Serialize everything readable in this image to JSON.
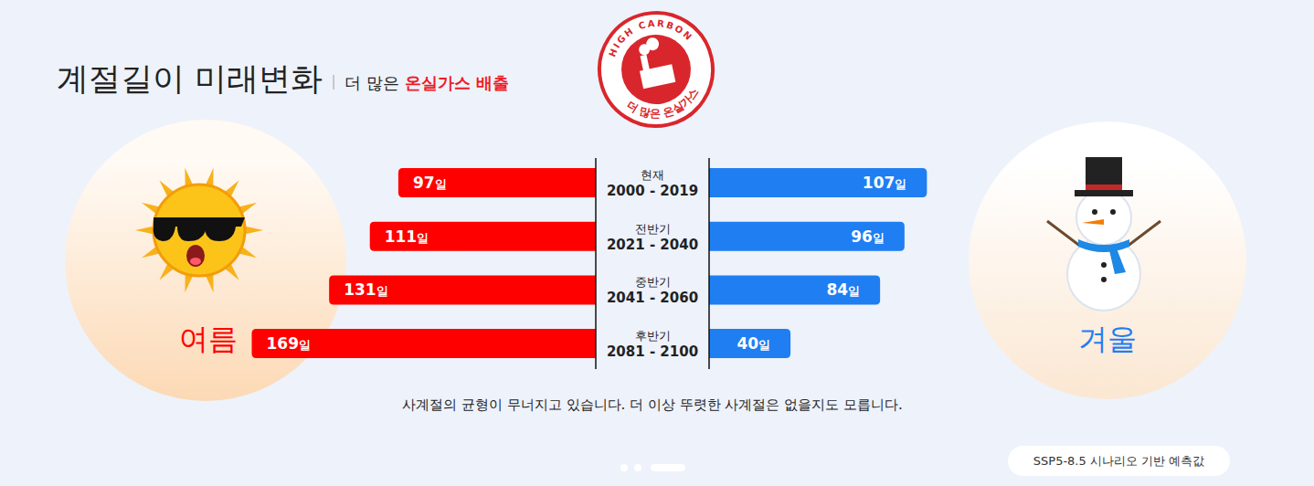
{
  "chart_data": {
    "type": "bar",
    "orientation": "horizontal",
    "title": "계절길이 미래변화",
    "subtitle": [
      "더 많은",
      "온실가스 배출"
    ],
    "categories": [
      "현재\n2000 - 2019",
      "전반기\n2021 - 2040",
      "중반기\n2041 - 2060",
      "후반기\n2081 - 2100"
    ],
    "series": [
      {
        "name": "여름",
        "color": "#ff0000",
        "values": [
          97,
          111,
          131,
          169
        ],
        "value_labels": [
          "97일",
          "111일",
          "131일",
          "169일"
        ]
      },
      {
        "name": "겨울",
        "color": "#1f7ef2",
        "values": [
          107,
          96,
          84,
          40
        ],
        "value_labels": [
          "107일",
          "96일",
          "84일",
          "40일"
        ]
      }
    ],
    "xlim": [
      0,
      180
    ],
    "data_labels": true,
    "tick_labels": false,
    "grid": false,
    "annotations": {
      "note": "사계절의 균형이 무너지고 있습니다. 더 이상 뚜렷한 사계절은 없을지도 모릅니다.",
      "scenario": "SSP5-8.5 시나리오 기반 예측값",
      "stamp": [
        "HIGH CARBON",
        "더 많은 온실가스"
      ]
    }
  }
}
